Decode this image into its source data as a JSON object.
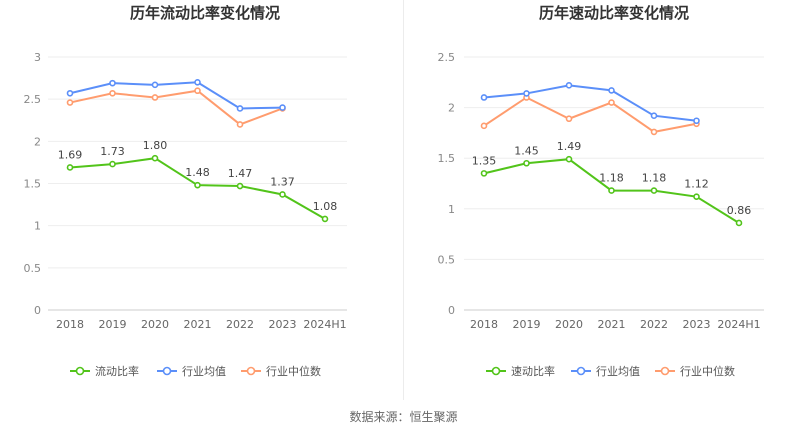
{
  "chart_data": [
    {
      "type": "line",
      "title": "历年流动比率变化情况",
      "categories": [
        "2018",
        "2019",
        "2020",
        "2021",
        "2022",
        "2023",
        "2024H1"
      ],
      "ylim": [
        0,
        3
      ],
      "yticks": [
        "0",
        "0.5",
        "1",
        "1.5",
        "2",
        "2.5",
        "3"
      ],
      "grid": true,
      "legend_position": "bottom",
      "series": [
        {
          "name": "流动比率",
          "color": "#52c41a",
          "values": [
            1.69,
            1.73,
            1.8,
            1.48,
            1.47,
            1.37,
            1.08
          ],
          "labels": [
            "1.69",
            "1.73",
            "1.80",
            "1.48",
            "1.47",
            "1.37",
            "1.08"
          ]
        },
        {
          "name": "行业均值",
          "color": "#5b8ff9",
          "values": [
            2.57,
            2.69,
            2.67,
            2.7,
            2.39,
            2.4,
            null
          ]
        },
        {
          "name": "行业中位数",
          "color": "#ff9c6e",
          "values": [
            2.46,
            2.57,
            2.52,
            2.6,
            2.2,
            2.39,
            null
          ]
        }
      ]
    },
    {
      "type": "line",
      "title": "历年速动比率变化情况",
      "categories": [
        "2018",
        "2019",
        "2020",
        "2021",
        "2022",
        "2023",
        "2024H1"
      ],
      "ylim": [
        0,
        2.5
      ],
      "yticks": [
        "0",
        "0.5",
        "1",
        "1.5",
        "2",
        "2.5"
      ],
      "grid": true,
      "legend_position": "bottom",
      "series": [
        {
          "name": "速动比率",
          "color": "#52c41a",
          "values": [
            1.35,
            1.45,
            1.49,
            1.18,
            1.18,
            1.12,
            0.86
          ],
          "labels": [
            "1.35",
            "1.45",
            "1.49",
            "1.18",
            "1.18",
            "1.12",
            "0.86"
          ]
        },
        {
          "name": "行业均值",
          "color": "#5b8ff9",
          "values": [
            2.1,
            2.14,
            2.22,
            2.17,
            1.92,
            1.87,
            null
          ]
        },
        {
          "name": "行业中位数",
          "color": "#ff9c6e",
          "values": [
            1.82,
            2.1,
            1.89,
            2.05,
            1.76,
            1.84,
            null
          ]
        }
      ]
    }
  ],
  "footer": {
    "source": "数据来源：恒生聚源"
  }
}
